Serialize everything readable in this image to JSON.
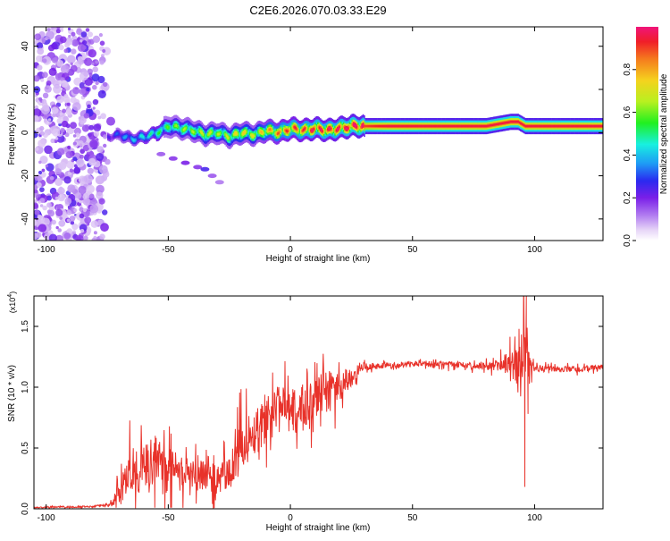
{
  "title": "C2E6.2026.070.03.33.E29",
  "chart_data": [
    {
      "type": "heatmap",
      "xlabel": "Height of straight line (km)",
      "ylabel": "Frequency (Hz)",
      "xlim": [
        -105,
        128
      ],
      "ylim": [
        -50,
        49
      ],
      "xticks": [
        -100,
        -50,
        0,
        50,
        100
      ],
      "yticks": [
        -40,
        -20,
        0,
        20,
        40
      ],
      "noise_region_x": [
        -105,
        -73
      ],
      "ridge": {
        "x": [
          -75,
          -70,
          -65,
          -60,
          -55,
          -50,
          -45,
          -40,
          -35,
          -30,
          -25,
          -20,
          -15,
          -10,
          -5,
          0,
          5,
          10,
          15,
          20,
          25,
          30,
          40,
          50,
          60,
          70,
          80,
          85,
          90,
          93,
          96,
          100,
          110,
          120,
          128
        ],
        "y": [
          -2,
          -1,
          -3,
          -2,
          0,
          3,
          2,
          1,
          -1,
          0,
          -2,
          0,
          -1,
          1,
          0,
          2,
          1,
          2,
          1,
          2,
          3,
          3,
          3,
          3,
          3,
          3,
          3,
          4,
          5,
          5,
          3,
          3,
          3,
          3,
          3
        ],
        "intensity": [
          0.2,
          0.3,
          0.35,
          0.4,
          0.45,
          0.5,
          0.55,
          0.55,
          0.6,
          0.55,
          0.6,
          0.65,
          0.6,
          0.7,
          0.75,
          0.8,
          0.8,
          0.85,
          0.85,
          0.85,
          0.9,
          0.9,
          0.95,
          0.95,
          0.95,
          0.95,
          0.95,
          0.95,
          0.95,
          0.95,
          0.95,
          0.95,
          0.95,
          0.95,
          0.95
        ]
      },
      "streak": {
        "x": [
          -53,
          -48,
          -43,
          -38,
          -35,
          -32,
          -29
        ],
        "y": [
          -10,
          -12,
          -14,
          -16,
          -17,
          -20,
          -23
        ],
        "intensity": [
          0.15,
          0.18,
          0.2,
          0.18,
          0.25,
          0.15,
          0.12
        ]
      }
    },
    {
      "type": "line",
      "xlabel": "Height of straight line (km)",
      "ylabel": "SNR (10 * v/v)",
      "yscale_note": "(x10",
      "yscale_exp": "4",
      "xlim": [
        -105,
        128
      ],
      "ylim": [
        0,
        1.75
      ],
      "xticks": [
        -100,
        -50,
        0,
        50,
        100
      ],
      "yticks": [
        0.0,
        0.5,
        1.0,
        1.5
      ],
      "ytick_labels": [
        "0.0",
        "0.5",
        "1.0",
        "1.5"
      ],
      "series": [
        {
          "name": "SNR",
          "color": "#e8322a",
          "anchors": {
            "x": [
              -105,
              -80,
              -73,
              -68,
              -65,
              -60,
              -55,
              -50,
              -45,
              -40,
              -35,
              -30,
              -25,
              -22,
              -20,
              -15,
              -10,
              -5,
              0,
              5,
              10,
              15,
              20,
              25,
              30,
              40,
              50,
              60,
              70,
              80,
              85,
              90,
              93,
              95,
              97,
              99,
              100,
              110,
              120,
              128
            ],
            "mean": [
              0.01,
              0.02,
              0.04,
              0.2,
              0.35,
              0.33,
              0.4,
              0.3,
              0.28,
              0.27,
              0.3,
              0.25,
              0.28,
              0.4,
              0.55,
              0.62,
              0.76,
              0.83,
              0.78,
              0.82,
              0.92,
              0.96,
              1.0,
              1.08,
              1.17,
              1.18,
              1.19,
              1.19,
              1.18,
              1.17,
              1.18,
              1.2,
              1.16,
              1.1,
              1.18,
              1.16,
              1.15,
              1.15,
              1.15,
              1.16
            ],
            "amp": [
              0.005,
              0.008,
              0.02,
              0.16,
              0.22,
              0.2,
              0.22,
              0.18,
              0.18,
              0.16,
              0.17,
              0.14,
              0.14,
              0.2,
              0.22,
              0.2,
              0.22,
              0.2,
              0.18,
              0.2,
              0.2,
              0.18,
              0.14,
              0.08,
              0.03,
              0.025,
              0.025,
              0.025,
              0.025,
              0.03,
              0.05,
              0.1,
              0.2,
              0.5,
              0.15,
              0.05,
              0.03,
              0.025,
              0.025,
              0.025
            ]
          },
          "spikes": [
            {
              "x": 96.6,
              "y": 1.75
            },
            {
              "x": 96.0,
              "y": 0.18
            },
            {
              "x": 97.3,
              "y": 0.78
            },
            {
              "x": 93.6,
              "y": 1.48
            }
          ]
        }
      ]
    }
  ],
  "colorbar": {
    "label": "Normalized spectral amplitude",
    "range": [
      0,
      1
    ],
    "ticks": [
      0.0,
      0.2,
      0.4,
      0.6,
      0.8
    ],
    "tick_labels": [
      "0.0",
      "0.2",
      "0.4",
      "0.6",
      "0.8"
    ]
  }
}
